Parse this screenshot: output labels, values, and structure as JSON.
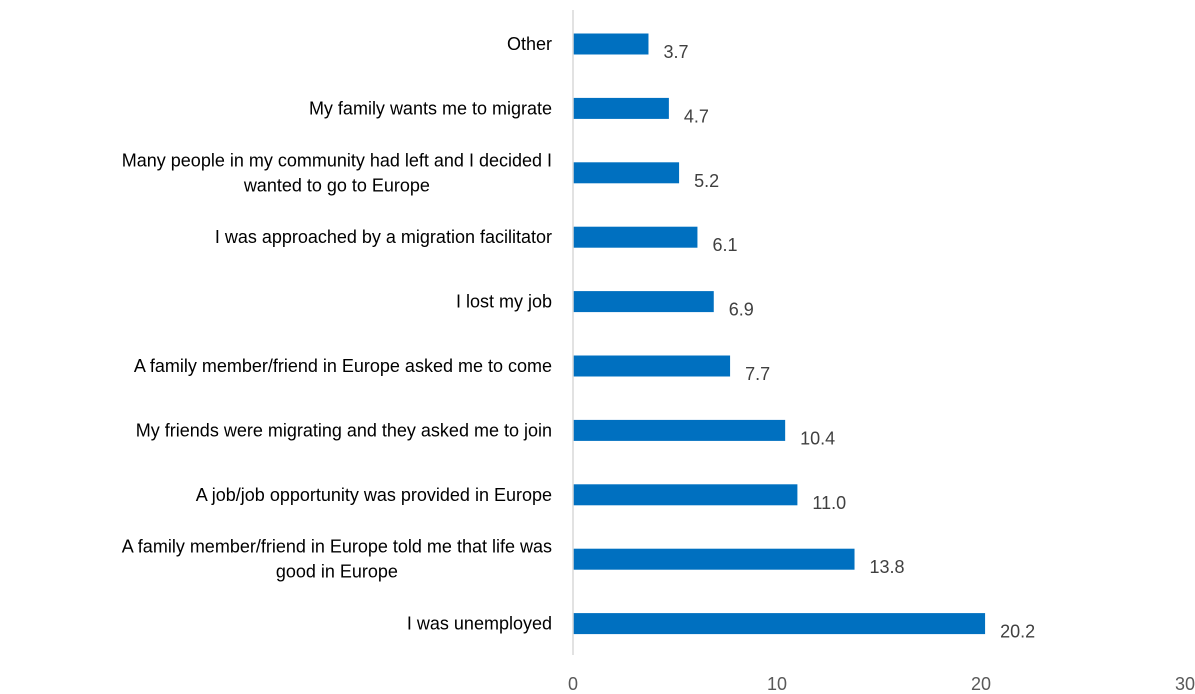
{
  "chart_data": {
    "type": "bar",
    "orientation": "horizontal",
    "categories": [
      [
        "Other"
      ],
      [
        "My family wants me to migrate"
      ],
      [
        "Many people in my community had left and I decided I",
        "wanted to go to Europe"
      ],
      [
        "I was approached by a migration facilitator"
      ],
      [
        "I lost my job"
      ],
      [
        "A family member/friend in Europe asked me to come"
      ],
      [
        "My friends were migrating and they asked me to join"
      ],
      [
        "A job/job opportunity was provided in Europe"
      ],
      [
        "A family member/friend in Europe told me that life was",
        "good in Europe"
      ],
      [
        "I was unemployed"
      ]
    ],
    "values": [
      3.7,
      4.7,
      5.2,
      6.1,
      6.9,
      7.7,
      10.4,
      11.0,
      13.8,
      20.2
    ],
    "value_labels": [
      "3.7",
      "4.7",
      "5.2",
      "6.1",
      "6.9",
      "7.7",
      "10.4",
      "11.0",
      "13.8",
      "20.2"
    ],
    "xlim": [
      0,
      30
    ],
    "xticks": [
      0,
      10,
      20,
      30
    ],
    "grid": false,
    "bar_color": "#0070C0",
    "axis_color": "#D9D9D9"
  }
}
